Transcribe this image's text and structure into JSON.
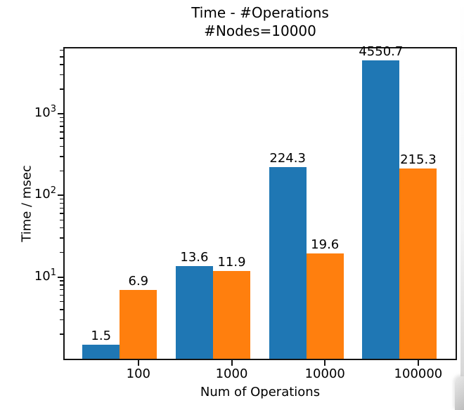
{
  "chart_data": {
    "type": "bar",
    "title": "Time - #Operations",
    "subtitle": "#Nodes=10000",
    "xlabel": "Num of Operations",
    "ylabel": "Time / msec",
    "categories": [
      "100",
      "1000",
      "10000",
      "100000"
    ],
    "series": [
      {
        "name": "blue-series",
        "color": "#1f77b4",
        "offset_units": -0.4,
        "values": [
          1.5,
          13.6,
          224.3,
          4550.7
        ],
        "labels": [
          "1.5",
          "13.6",
          "224.3",
          "4550.7"
        ]
      },
      {
        "name": "orange-series",
        "color": "#ff7f0e",
        "offset_units": 0,
        "values": [
          6.9,
          11.9,
          19.6,
          215.3
        ],
        "labels": [
          "6.9",
          "11.9",
          "19.6",
          "215.3"
        ]
      }
    ],
    "bar_width_units": 0.4,
    "y_scale": "log",
    "ylim": [
      1,
      6310
    ],
    "xlim_units": [
      -0.79,
      3.4
    ],
    "y_major_ticks": [
      {
        "base": "10",
        "exp": "1"
      },
      {
        "base": "10",
        "exp": "2"
      },
      {
        "base": "10",
        "exp": "3"
      }
    ],
    "grid": false,
    "legend": null
  }
}
